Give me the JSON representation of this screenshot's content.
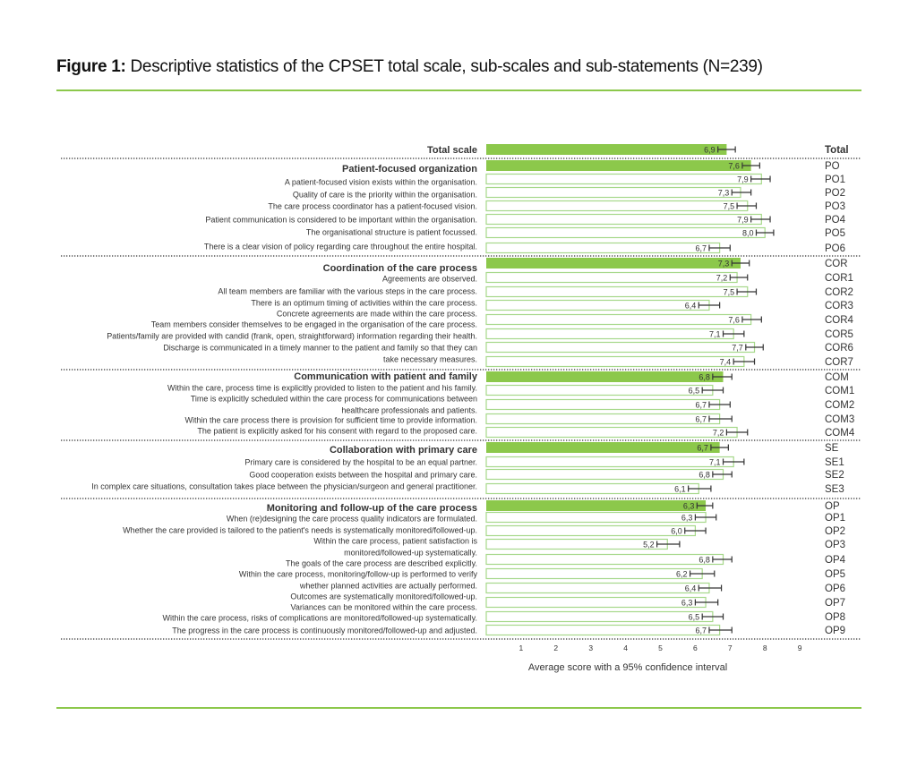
{
  "figure": {
    "title_prefix": "Figure 1:",
    "title": " Descriptive statistics of the CPSET total scale, sub-scales and sub-statements (N=239)"
  },
  "colors": {
    "scale_fill": "#8cc84b",
    "item_outline": "#a6d88a",
    "rule": "#8cc84b",
    "error_bar": "#333333"
  },
  "chart_data": {
    "type": "bar",
    "orientation": "horizontal",
    "xlabel": "Average score with a 95% confidence interval",
    "xticks": [
      1,
      2,
      3,
      4,
      5,
      6,
      7,
      8,
      9
    ],
    "xlim": [
      0,
      10
    ],
    "decimal_separator": ",",
    "rows": [
      {
        "code": "Total",
        "kind": "total",
        "value": 6.9,
        "ci": [
          6.65,
          7.15
        ],
        "label": [
          "Total scale"
        ]
      },
      {
        "code": "PO",
        "kind": "scale",
        "value": 7.6,
        "ci": [
          7.35,
          7.85
        ],
        "label": [
          "Patient-focused organization"
        ]
      },
      {
        "code": "PO1",
        "kind": "item",
        "value": 7.9,
        "ci": [
          7.6,
          8.15
        ],
        "label": [
          "A patient-focused vision exists within the organisation."
        ]
      },
      {
        "code": "PO2",
        "kind": "item",
        "value": 7.3,
        "ci": [
          7.05,
          7.6
        ],
        "label": [
          "Quality of care is the priority within the organisation."
        ]
      },
      {
        "code": "PO3",
        "kind": "item",
        "value": 7.5,
        "ci": [
          7.2,
          7.75
        ],
        "label": [
          "The care process coordinator has a patient-focused vision."
        ]
      },
      {
        "code": "PO4",
        "kind": "item",
        "value": 7.9,
        "ci": [
          7.6,
          8.15
        ],
        "label": [
          "Patient communication is considered to be important within the organisation."
        ]
      },
      {
        "code": "PO5",
        "kind": "item",
        "value": 8.0,
        "ci": [
          7.75,
          8.25
        ],
        "label": [
          "The organisational structure is patient focussed."
        ]
      },
      {
        "code": "PO6",
        "kind": "item",
        "value": 6.7,
        "ci": [
          6.4,
          7.0
        ],
        "label": [
          "There is a clear vision of policy regarding care throughout the entire hospital."
        ]
      },
      {
        "code": "COR",
        "kind": "scale",
        "value": 7.3,
        "ci": [
          7.05,
          7.55
        ],
        "label": [
          "Coordination of the care process"
        ]
      },
      {
        "code": "COR1",
        "kind": "item",
        "value": 7.2,
        "ci": [
          7.0,
          7.5
        ],
        "label": [
          "Agreements are observed."
        ]
      },
      {
        "code": "COR2",
        "kind": "item",
        "value": 7.5,
        "ci": [
          7.2,
          7.75
        ],
        "label": [
          "All team members are familiar with the various steps in the care process."
        ]
      },
      {
        "code": "COR3",
        "kind": "item",
        "value": 6.4,
        "ci": [
          6.1,
          6.7
        ],
        "label": [
          "There is an optimum timing of activities within the care process."
        ]
      },
      {
        "code": "COR4",
        "kind": "item",
        "value": 7.6,
        "ci": [
          7.35,
          7.9
        ],
        "label": [
          "Concrete agreements are made within the care process."
        ]
      },
      {
        "code": "COR5",
        "kind": "item",
        "value": 7.1,
        "ci": [
          6.8,
          7.4
        ],
        "label": [
          "Team members consider themselves to be engaged in the organisation of the care process."
        ]
      },
      {
        "code": "COR6",
        "kind": "item",
        "value": 7.7,
        "ci": [
          7.45,
          7.95
        ],
        "label": [
          "Patients/family are provided with candid (frank, open, straightforward) information regarding their health."
        ]
      },
      {
        "code": "COR7",
        "kind": "item",
        "value": 7.4,
        "ci": [
          7.1,
          7.7
        ],
        "label": [
          "Discharge is communicated in a timely manner to the patient and family so that they can",
          "take necessary measures."
        ]
      },
      {
        "code": "COM",
        "kind": "scale",
        "value": 6.8,
        "ci": [
          6.5,
          7.05
        ],
        "label": [
          "Communication with patient and family"
        ]
      },
      {
        "code": "COM1",
        "kind": "item",
        "value": 6.5,
        "ci": [
          6.2,
          6.8
        ],
        "label": [
          "Within the care, process time is explicitly provided to listen to the patient and his family."
        ]
      },
      {
        "code": "COM2",
        "kind": "item",
        "value": 6.7,
        "ci": [
          6.4,
          7.0
        ],
        "label": [
          "Time is explicitly scheduled within the care process for communications between",
          "healthcare professionals and patients."
        ]
      },
      {
        "code": "COM3",
        "kind": "item",
        "value": 6.7,
        "ci": [
          6.4,
          7.05
        ],
        "label": [
          "Within the care process there is provision for sufficient time to provide information."
        ]
      },
      {
        "code": "COM4",
        "kind": "item",
        "value": 7.2,
        "ci": [
          6.9,
          7.5
        ],
        "label": [
          "The patient is explicitly asked for his consent with regard to the proposed care."
        ]
      },
      {
        "code": "SE",
        "kind": "scale",
        "value": 6.7,
        "ci": [
          6.45,
          6.95
        ],
        "label": [
          "Collaboration with primary care"
        ]
      },
      {
        "code": "SE1",
        "kind": "item",
        "value": 7.1,
        "ci": [
          6.8,
          7.4
        ],
        "label": [
          "Primary care is considered by the hospital to be an equal partner."
        ]
      },
      {
        "code": "SE2",
        "kind": "item",
        "value": 6.8,
        "ci": [
          6.5,
          7.05
        ],
        "label": [
          "Good cooperation exists between the hospital and primary care."
        ]
      },
      {
        "code": "SE3",
        "kind": "item",
        "value": 6.1,
        "ci": [
          5.8,
          6.45
        ],
        "label": [
          "In complex care situations, consultation takes place between the physician/surgeon and general practitioner."
        ]
      },
      {
        "code": "OP",
        "kind": "scale",
        "value": 6.3,
        "ci": [
          6.05,
          6.5
        ],
        "label": [
          "Monitoring and follow-up of the care process"
        ]
      },
      {
        "code": "OP1",
        "kind": "item",
        "value": 6.3,
        "ci": [
          6.0,
          6.6
        ],
        "label": [
          "When (re)designing the care process quality indicators are formulated."
        ]
      },
      {
        "code": "OP2",
        "kind": "item",
        "value": 6.0,
        "ci": [
          5.7,
          6.3
        ],
        "label": [
          "Whether the care provided is tailored to the patient's needs is systematically monitored/followed-up."
        ]
      },
      {
        "code": "OP3",
        "kind": "item",
        "value": 5.2,
        "ci": [
          4.9,
          5.55
        ],
        "label": [
          "Within the care process, patient satisfaction is",
          "monitored/followed-up systematically."
        ]
      },
      {
        "code": "OP4",
        "kind": "item",
        "value": 6.8,
        "ci": [
          6.5,
          7.05
        ],
        "label": [
          "The goals of the care process are described explicitly."
        ]
      },
      {
        "code": "OP5",
        "kind": "item",
        "value": 6.2,
        "ci": [
          5.85,
          6.55
        ],
        "label": [
          "Within the care process, monitoring/follow-up is performed to verify",
          "whether planned activities are actually performed."
        ]
      },
      {
        "code": "OP6",
        "kind": "item",
        "value": 6.4,
        "ci": [
          6.1,
          6.75
        ],
        "label": [
          "Outcomes are systematically monitored/followed-up."
        ]
      },
      {
        "code": "OP7",
        "kind": "item",
        "value": 6.3,
        "ci": [
          6.0,
          6.65
        ],
        "label": [
          "Variances can be monitored within the care process."
        ]
      },
      {
        "code": "OP8",
        "kind": "item",
        "value": 6.5,
        "ci": [
          6.2,
          6.8
        ],
        "label": [
          "Within the care process, risks of complications are monitored/followed-up systematically."
        ]
      },
      {
        "code": "OP9",
        "kind": "item",
        "value": 6.7,
        "ci": [
          6.4,
          7.05
        ],
        "label": [
          "The progress in the care process is continuously monitored/followed-up and adjusted."
        ]
      }
    ]
  }
}
